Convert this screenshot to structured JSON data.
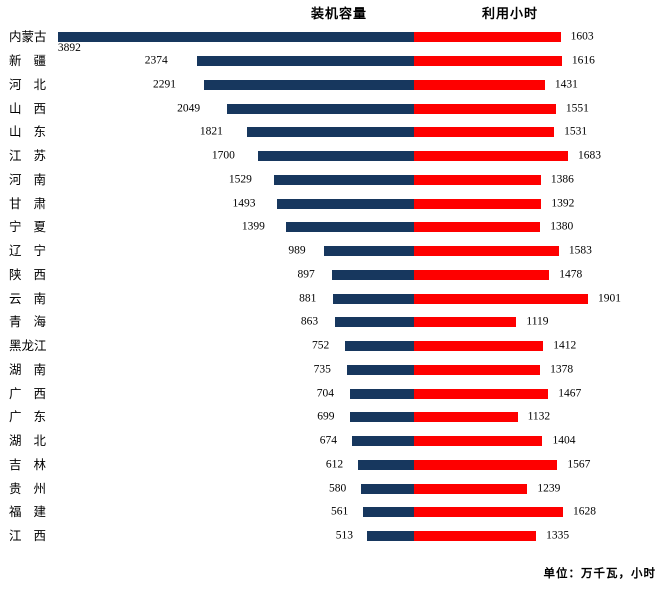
{
  "header": {
    "left_series_label": "装机容量",
    "right_series_label": "利用小时"
  },
  "footer": {
    "unit_note": "单位：万千瓦，小时"
  },
  "colors": {
    "left_bar": "#17375E",
    "right_bar": "#FE0000",
    "text": "#000000",
    "background": "#FFFFFF"
  },
  "chart_data": {
    "type": "bar",
    "variant": "diverging-horizontal",
    "title": "",
    "legend_position": "top",
    "grid": false,
    "value_labels": "outside-end",
    "unit_note": "单位：万千瓦，小时",
    "categories": [
      "内蒙古",
      "新疆",
      "河北",
      "山西",
      "山东",
      "江苏",
      "河南",
      "甘肃",
      "宁夏",
      "辽宁",
      "陕西",
      "云南",
      "青海",
      "黑龙江",
      "湖南",
      "广西",
      "广东",
      "湖北",
      "吉林",
      "贵州",
      "福建",
      "江西"
    ],
    "series": [
      {
        "name": "装机容量",
        "side": "left",
        "color": "#17375E",
        "values": [
          3892,
          2374,
          2291,
          2049,
          1821,
          1700,
          1529,
          1493,
          1399,
          989,
          897,
          881,
          863,
          752,
          735,
          704,
          699,
          674,
          612,
          580,
          561,
          513
        ]
      },
      {
        "name": "利用小时",
        "side": "right",
        "color": "#FE0000",
        "values": [
          1603,
          1616,
          1431,
          1551,
          1531,
          1683,
          1386,
          1392,
          1380,
          1583,
          1478,
          1901,
          1119,
          1412,
          1378,
          1467,
          1132,
          1404,
          1567,
          1239,
          1628,
          1335
        ]
      }
    ]
  }
}
